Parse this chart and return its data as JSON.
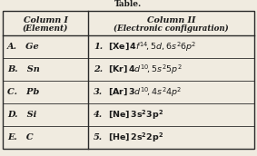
{
  "title": "Table.",
  "col1_header_line1": "Column I",
  "col1_header_line2": "(Element)",
  "col2_header_line1": "Column II",
  "col2_header_line2": "(Electronic configuration)",
  "col1_rows": [
    "A.   Ge",
    "B.   Sn",
    "C.   Pb",
    "D.   Si",
    "E.   C"
  ],
  "col2_numbers": [
    "1.",
    "2.",
    "3.",
    "4.",
    "5."
  ],
  "col2_math": [
    "$\\mathbf{[Xe]\\,4\\it{f}^{14}\\!,5d,6s^{2}6p^{2}}$",
    "$\\mathbf{[Kr]\\,4\\it{d}^{10}\\!,5s^{2}5p^{2}}$",
    "$\\mathbf{[Ar]\\,3\\it{d}^{10}\\!,4s^{2}4p^{2}}$",
    "$\\mathbf{[Ne]\\,3s^{2}3p^{2}}$",
    "$\\mathbf{[He]\\,2s^{2}2p^{2}}$"
  ],
  "background_color": "#f0ebe0",
  "border_color": "#2a2a2a",
  "text_color": "#1a1a1a"
}
